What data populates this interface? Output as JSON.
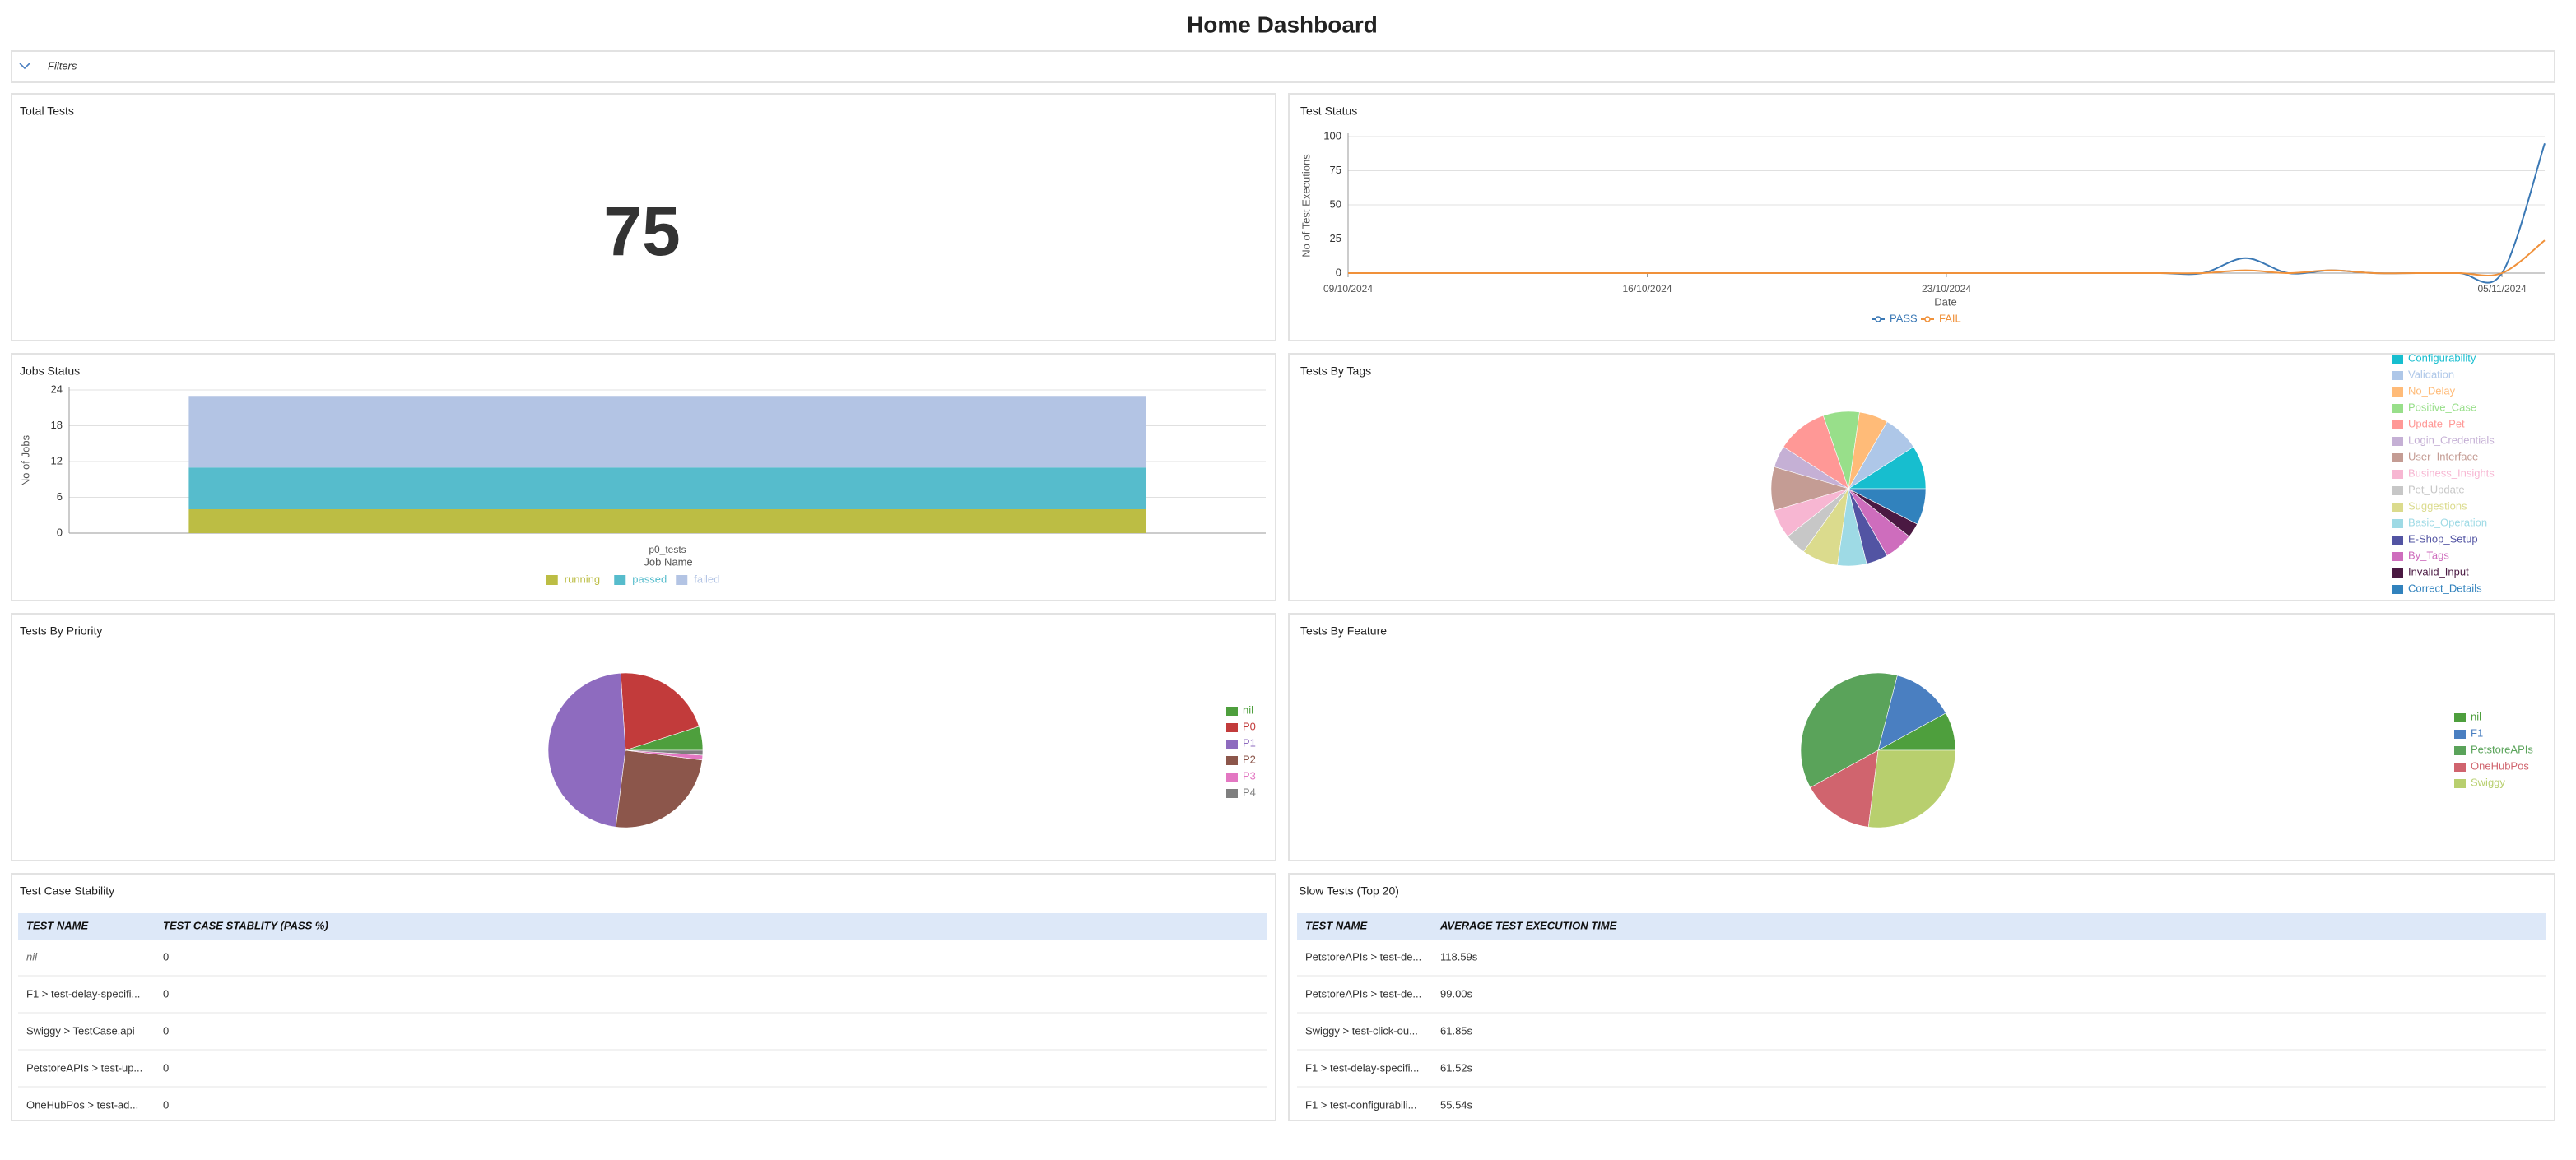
{
  "header": {
    "title": "Home Dashboard",
    "filters": "Filters"
  },
  "total_tests": {
    "title": "Total Tests",
    "value": 75
  },
  "chart_data": [
    {
      "type": "line",
      "title": "Test Status",
      "y_label": "No of Test Executions",
      "x_label": "Date",
      "x": [
        "09/10/2024",
        "10/10/2024",
        "11/10/2024",
        "12/10/2024",
        "13/10/2024",
        "14/10/2024",
        "15/10/2024",
        "16/10/2024",
        "17/10/2024",
        "18/10/2024",
        "19/10/2024",
        "20/10/2024",
        "21/10/2024",
        "22/10/2024",
        "23/10/2024",
        "24/10/2024",
        "25/10/2024",
        "26/10/2024",
        "27/10/2024",
        "28/10/2024",
        "29/10/2024",
        "30/10/2024",
        "31/10/2024",
        "01/11/2024",
        "02/11/2024",
        "03/11/2024",
        "04/11/2024",
        "05/11/2024",
        "06/11/2024"
      ],
      "xlim": [
        "09/10/2024",
        "06/11/2024"
      ],
      "xticks": [
        "09/10/2024",
        "16/10/2024",
        "23/10/2024",
        "05/11/2024"
      ],
      "ylim": [
        0,
        100
      ],
      "yticks": [
        0,
        25,
        50,
        75,
        100
      ],
      "grid": true,
      "series": [
        {
          "name": "PASS",
          "color": "#3a78b5",
          "values": [
            0,
            0,
            0,
            0,
            0,
            0,
            0,
            0,
            0,
            0,
            0,
            0,
            0,
            0,
            0,
            0,
            0,
            0,
            0,
            0,
            0,
            11,
            0,
            2,
            0,
            0,
            0,
            0,
            95
          ]
        },
        {
          "name": "FAIL",
          "color": "#f0913a",
          "values": [
            0,
            0,
            0,
            0,
            0,
            0,
            0,
            0,
            0,
            0,
            0,
            0,
            0,
            0,
            0,
            0,
            0,
            0,
            0,
            0,
            0,
            2,
            0,
            2,
            0,
            0,
            0,
            0,
            24
          ]
        }
      ]
    },
    {
      "type": "bar",
      "stacked": true,
      "title": "Jobs Status",
      "y_label": "No of Jobs",
      "x_label": "Job Name",
      "categories": [
        "p0_tests"
      ],
      "ylim": [
        0,
        24
      ],
      "yticks": [
        0,
        6,
        12,
        18,
        24
      ],
      "grid": true,
      "series": [
        {
          "name": "running",
          "color": "#bcbd44",
          "values": [
            4
          ]
        },
        {
          "name": "passed",
          "color": "#56bccc",
          "values": [
            7
          ]
        },
        {
          "name": "failed",
          "color": "#b3c4e4",
          "values": [
            12
          ]
        }
      ]
    },
    {
      "type": "pie",
      "title": "Tests By Tags",
      "categories": [
        "Configurability",
        "Validation",
        "No_Delay",
        "Positive_Case",
        "Update_Pet",
        "Login_Credentials",
        "User_Interface",
        "Business_Insights",
        "Pet_Update",
        "Suggestions",
        "Basic_Operation",
        "E-Shop_Setup",
        "By_Tags",
        "Invalid_Input",
        "Correct_Details"
      ],
      "values": [
        6,
        5,
        4,
        5,
        7,
        3,
        6,
        4,
        3,
        5,
        4,
        3,
        4,
        2,
        5
      ],
      "colors": [
        "#17becf",
        "#aec7e8",
        "#ffbb78",
        "#98df8a",
        "#ff9896",
        "#c5b0d5",
        "#c49c94",
        "#f7b6d2",
        "#c7c7c7",
        "#dbdb8d",
        "#9edae5",
        "#5254a3",
        "#ce6dbd",
        "#4a1942",
        "#3182bd"
      ]
    },
    {
      "type": "pie",
      "title": "Tests By Priority",
      "categories": [
        "nil",
        "P0",
        "P1",
        "P2",
        "P3",
        "P4"
      ],
      "values": [
        5,
        21,
        47,
        25,
        1,
        1
      ],
      "colors": [
        "#4e9f3d",
        "#c23b3b",
        "#8e6bbf",
        "#8c564b",
        "#e377c2",
        "#7f7f7f"
      ]
    },
    {
      "type": "pie",
      "title": "Tests By Feature",
      "categories": [
        "nil",
        "F1",
        "PetstoreAPIs",
        "OneHubPos",
        "Swiggy"
      ],
      "values": [
        8,
        13,
        37,
        15,
        27
      ],
      "colors": [
        "#4e9f3d",
        "#4a7fc1",
        "#5aa35a",
        "#d0646e",
        "#b8cf6e"
      ]
    }
  ],
  "tables": [
    {
      "title": "Test Case Stability",
      "columns": [
        "TEST NAME",
        "TEST CASE STABLITY (PASS %)"
      ],
      "rows": [
        [
          "nil",
          0
        ],
        [
          "F1 > test-delay-specifi...",
          0
        ],
        [
          "Swiggy > TestCase.api",
          0
        ],
        [
          "PetstoreAPIs > test-up...",
          0
        ],
        [
          "OneHubPos > test-ad...",
          0
        ]
      ]
    },
    {
      "title": "Slow Tests (Top 20)",
      "columns": [
        "TEST NAME",
        "AVERAGE TEST EXECUTION TIME"
      ],
      "rows": [
        [
          "PetstoreAPIs > test-de...",
          "118.59s"
        ],
        [
          "PetstoreAPIs > test-de...",
          "99.00s"
        ],
        [
          "Swiggy > test-click-ou...",
          "61.85s"
        ],
        [
          "F1 > test-delay-specifi...",
          "61.52s"
        ],
        [
          "F1 > test-configurabili...",
          "55.54s"
        ]
      ]
    }
  ]
}
